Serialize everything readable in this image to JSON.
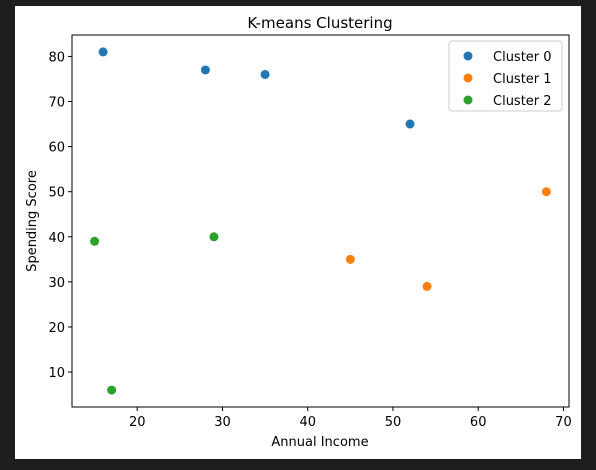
{
  "chart_data": {
    "type": "scatter",
    "title": "K-means Clustering",
    "xlabel": "Annual Income",
    "ylabel": "Spending Score",
    "xlim": [
      12.35,
      70.65
    ],
    "ylim": [
      2.25,
      84.75
    ],
    "xticks": [
      20,
      30,
      40,
      50,
      60,
      70
    ],
    "yticks": [
      10,
      20,
      30,
      40,
      50,
      60,
      70,
      80
    ],
    "grid": false,
    "legend_position": "top-right",
    "series": [
      {
        "name": "Cluster 0",
        "color": "#1f77b4",
        "points": [
          [
            16,
            81
          ],
          [
            28,
            77
          ],
          [
            35,
            76
          ],
          [
            52,
            65
          ]
        ]
      },
      {
        "name": "Cluster 1",
        "color": "#ff7f0e",
        "points": [
          [
            68,
            50
          ],
          [
            45,
            35
          ],
          [
            54,
            29
          ]
        ]
      },
      {
        "name": "Cluster 2",
        "color": "#2ca02c",
        "points": [
          [
            15,
            39
          ],
          [
            29,
            40
          ],
          [
            17,
            6
          ]
        ]
      }
    ]
  }
}
